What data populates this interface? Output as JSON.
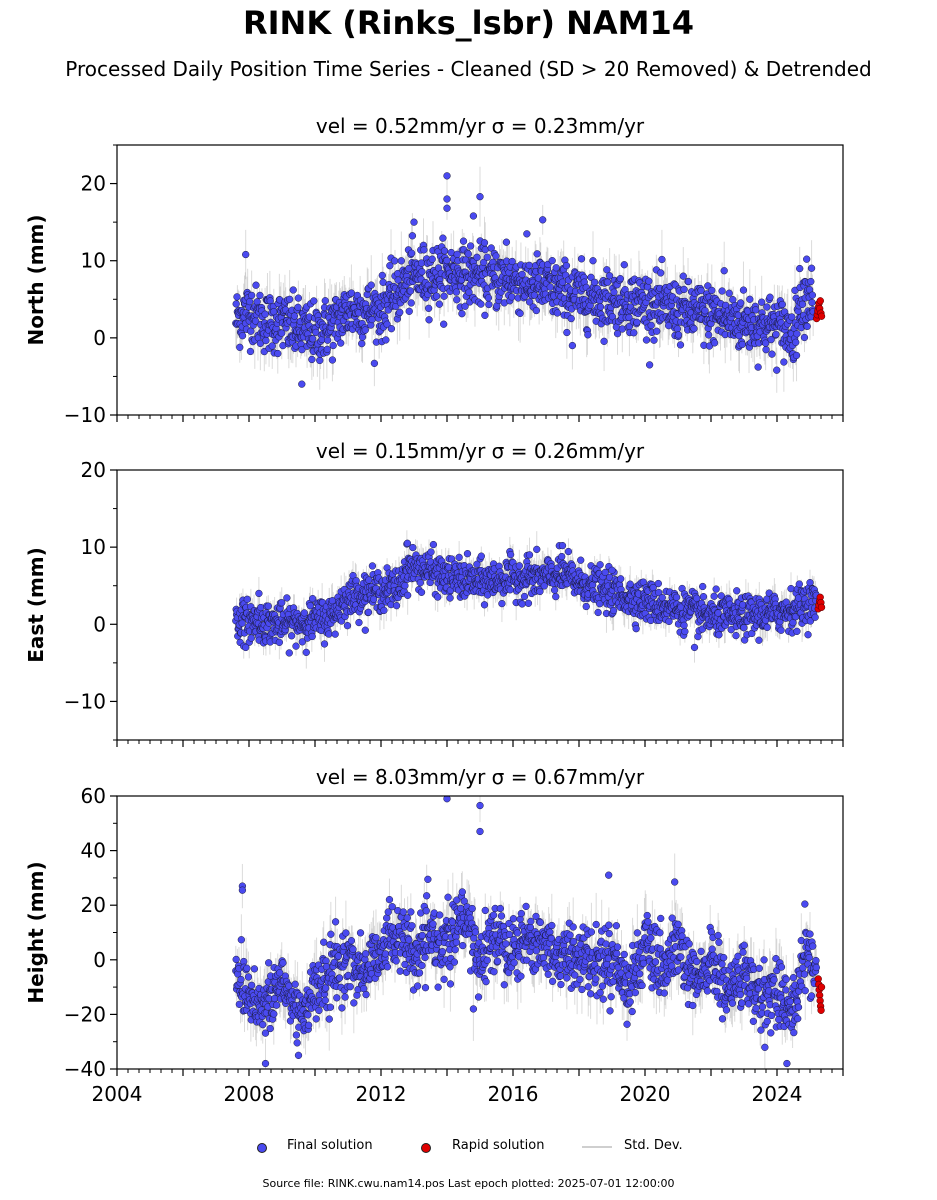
{
  "title": "RINK (Rinks_lsbr) NAM14",
  "subtitle": "Processed Daily Position Time Series - Cleaned (SD > 20 Removed) & Detrended",
  "footer": "Source file: RINK.cwu.nam14.pos  Last epoch plotted: 2025-07-01 12:00:00",
  "legend": {
    "final": "Final solution",
    "rapid": "Rapid solution",
    "sd": "Std. Dev."
  },
  "colors": {
    "final": "#4a4af0",
    "rapid": "#e00000",
    "sd": "#999999",
    "marker_edge": "#1a1a3a"
  },
  "chart_data": [
    {
      "type": "scatter",
      "title": "vel = 0.52mm/yr   σ = 0.23mm/yr",
      "ylabel": "North (mm)",
      "xlim": [
        2004,
        2026
      ],
      "ylim": [
        -10,
        25
      ],
      "yticks": [
        -10,
        0,
        10,
        20
      ],
      "ytick_labels": [
        "−10",
        "0",
        "10",
        "20"
      ],
      "xticks": [],
      "xtick_labels": [],
      "final_trend": [
        [
          2007.6,
          2.5
        ],
        [
          2008.0,
          3.5
        ],
        [
          2008.5,
          2.0
        ],
        [
          2009.0,
          2.0
        ],
        [
          2009.5,
          1.0
        ],
        [
          2010.0,
          0.5
        ],
        [
          2010.5,
          1.5
        ],
        [
          2011.0,
          3.5
        ],
        [
          2011.5,
          3.5
        ],
        [
          2012.0,
          3.5
        ],
        [
          2012.5,
          6.0
        ],
        [
          2013.0,
          8.0
        ],
        [
          2013.5,
          8.0
        ],
        [
          2014.0,
          8.5
        ],
        [
          2015.0,
          8.0
        ],
        [
          2016.0,
          7.5
        ],
        [
          2017.0,
          6.5
        ],
        [
          2018.0,
          5.5
        ],
        [
          2019.0,
          5.0
        ],
        [
          2020.0,
          4.5
        ],
        [
          2021.0,
          3.5
        ],
        [
          2022.0,
          3.0
        ],
        [
          2023.0,
          2.0
        ],
        [
          2024.0,
          1.5
        ],
        [
          2024.5,
          0.5
        ],
        [
          2024.7,
          5.0
        ],
        [
          2025.1,
          5.5
        ]
      ],
      "spread": 2.3,
      "outliers": [
        [
          2014.0,
          21.0
        ],
        [
          2014.0,
          18.0
        ],
        [
          2014.0,
          16.8
        ],
        [
          2015.0,
          18.3
        ],
        [
          2014.8,
          15.8
        ],
        [
          2016.9,
          15.3
        ],
        [
          2013.0,
          15.0
        ],
        [
          2007.9,
          10.8
        ],
        [
          2009.6,
          -6.0
        ],
        [
          2022.4,
          8.7
        ],
        [
          2024.9,
          10.2
        ],
        [
          2017.8,
          -1.0
        ],
        [
          2015.8,
          12.4
        ]
      ],
      "rapid": {
        "x_start": 2025.2,
        "x_end": 2025.35,
        "values": [
          2.5,
          3.0,
          3.5,
          4.0,
          4.5,
          3.8,
          4.8,
          3.2,
          2.8
        ]
      }
    },
    {
      "type": "scatter",
      "title": "vel = 0.15mm/yr   σ = 0.26mm/yr",
      "ylabel": "East (mm)",
      "xlim": [
        2004,
        2026
      ],
      "ylim": [
        -15,
        20
      ],
      "yticks": [
        -10,
        0,
        10,
        20
      ],
      "ytick_labels": [
        "−10",
        "0",
        "10",
        "20"
      ],
      "xticks": [],
      "xtick_labels": [],
      "final_trend": [
        [
          2007.6,
          0.5
        ],
        [
          2008.0,
          0.5
        ],
        [
          2009.0,
          0.0
        ],
        [
          2010.0,
          0.5
        ],
        [
          2010.5,
          1.0
        ],
        [
          2011.0,
          3.5
        ],
        [
          2011.5,
          4.0
        ],
        [
          2012.0,
          4.5
        ],
        [
          2012.5,
          4.5
        ],
        [
          2012.8,
          7.5
        ],
        [
          2013.5,
          7.0
        ],
        [
          2014.0,
          6.0
        ],
        [
          2015.0,
          5.5
        ],
        [
          2016.0,
          6.0
        ],
        [
          2017.0,
          6.0
        ],
        [
          2017.5,
          6.5
        ],
        [
          2018.0,
          5.5
        ],
        [
          2019.0,
          4.0
        ],
        [
          2020.0,
          3.0
        ],
        [
          2021.0,
          2.0
        ],
        [
          2022.0,
          1.0
        ],
        [
          2023.0,
          1.0
        ],
        [
          2024.0,
          1.5
        ],
        [
          2024.5,
          2.0
        ],
        [
          2025.0,
          3.0
        ],
        [
          2025.2,
          3.0
        ]
      ],
      "spread": 1.5,
      "outliers": [
        [
          2012.8,
          10.5
        ],
        [
          2016.5,
          9.0
        ],
        [
          2017.5,
          10.2
        ],
        [
          2008.3,
          4.0
        ],
        [
          2007.9,
          -3.0
        ],
        [
          2021.5,
          -3.0
        ],
        [
          2019.0,
          7.0
        ]
      ],
      "rapid": {
        "x_start": 2025.25,
        "x_end": 2025.35,
        "values": [
          2.0,
          2.5,
          3.0,
          3.5,
          2.8,
          2.2
        ]
      }
    },
    {
      "type": "scatter",
      "title": "vel = 8.03mm/yr   σ = 0.67mm/yr",
      "ylabel": "Height (mm)",
      "xlim": [
        2004,
        2026
      ],
      "ylim": [
        -40,
        60
      ],
      "yticks": [
        -40,
        -20,
        0,
        20,
        40,
        60
      ],
      "ytick_labels": [
        "−40",
        "−20",
        "0",
        "20",
        "40",
        "60"
      ],
      "xticks": [
        2004,
        2008,
        2012,
        2016,
        2020,
        2024
      ],
      "xtick_labels": [
        "2004",
        "2008",
        "2012",
        "2016",
        "2020",
        "2024"
      ],
      "final_trend": [
        [
          2007.6,
          -5.0
        ],
        [
          2008.0,
          -12.0
        ],
        [
          2008.5,
          -18.0
        ],
        [
          2009.0,
          -8.0
        ],
        [
          2009.5,
          -20.0
        ],
        [
          2010.0,
          -12.0
        ],
        [
          2010.5,
          -5.0
        ],
        [
          2011.0,
          0.0
        ],
        [
          2011.5,
          -5.0
        ],
        [
          2012.0,
          5.0
        ],
        [
          2012.5,
          10.0
        ],
        [
          2013.0,
          0.0
        ],
        [
          2013.5,
          8.0
        ],
        [
          2014.0,
          5.0
        ],
        [
          2014.5,
          15.0
        ],
        [
          2015.0,
          0.0
        ],
        [
          2015.5,
          10.0
        ],
        [
          2016.0,
          5.0
        ],
        [
          2016.5,
          8.0
        ],
        [
          2017.0,
          5.0
        ],
        [
          2017.5,
          0.0
        ],
        [
          2018.0,
          3.0
        ],
        [
          2018.5,
          -2.0
        ],
        [
          2019.0,
          2.0
        ],
        [
          2019.5,
          -10.0
        ],
        [
          2020.0,
          5.0
        ],
        [
          2020.5,
          -5.0
        ],
        [
          2021.0,
          5.0
        ],
        [
          2021.5,
          -10.0
        ],
        [
          2022.0,
          0.0
        ],
        [
          2022.5,
          -12.0
        ],
        [
          2023.0,
          -5.0
        ],
        [
          2023.5,
          -15.0
        ],
        [
          2024.0,
          -10.0
        ],
        [
          2024.5,
          -20.0
        ],
        [
          2024.9,
          5.0
        ],
        [
          2025.2,
          -5.0
        ]
      ],
      "spread": 7.0,
      "outliers": [
        [
          2014.0,
          59.0
        ],
        [
          2015.0,
          56.5
        ],
        [
          2015.0,
          47.0
        ],
        [
          2007.8,
          27.0
        ],
        [
          2007.8,
          25.5
        ],
        [
          2020.9,
          28.5
        ],
        [
          2018.9,
          31.0
        ],
        [
          2008.5,
          -38.0
        ],
        [
          2009.5,
          -35.0
        ],
        [
          2014.8,
          -18.0
        ],
        [
          2024.3,
          -38.0
        ]
      ],
      "rapid": {
        "x_start": 2025.25,
        "x_end": 2025.35,
        "values": [
          -7.0,
          -9.0,
          -11.0,
          -13.0,
          -15.0,
          -17.0,
          -18.5,
          -10.0
        ]
      }
    }
  ]
}
